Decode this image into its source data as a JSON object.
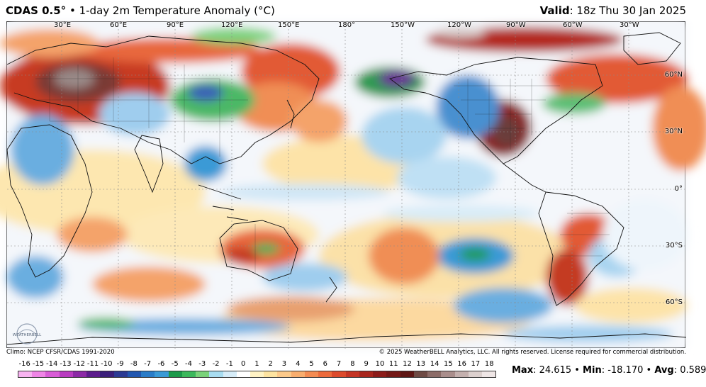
{
  "header": {
    "model": "CDAS 0.5",
    "degree_symbol": "°",
    "separator": "•",
    "field": "1-day 2m Temperature Anomaly (°C)",
    "valid_label": "Valid",
    "valid_value": ": 18z Thu 30 Jan 2025"
  },
  "map": {
    "longitude_labels": [
      "30°E",
      "60°E",
      "90°E",
      "120°E",
      "150°E",
      "180°",
      "150°W",
      "120°W",
      "90°W",
      "60°W",
      "30°W"
    ],
    "latitude_labels": [
      "60°N",
      "30°N",
      "0°",
      "30°S",
      "60°S"
    ],
    "logo_text": "WEATHERBELL"
  },
  "footer": {
    "climo": "Climo: NCEP CFSR/CDAS 1991-2020",
    "copyright": "© 2025 WeatherBELL Analytics, LLC. All rights reserved. License required for commercial distribution."
  },
  "colorbar": {
    "ticks": [
      "-16",
      "-15",
      "-14",
      "-13",
      "-12",
      "-11",
      "-10",
      "-9",
      "-8",
      "-7",
      "-6",
      "-5",
      "-4",
      "-3",
      "-2",
      "-1",
      "0",
      "1",
      "2",
      "3",
      "4",
      "5",
      "6",
      "7",
      "8",
      "9",
      "10",
      "11",
      "12",
      "13",
      "14",
      "15",
      "16",
      "17",
      "18"
    ],
    "colors": [
      "#f7b3f0",
      "#ef85e6",
      "#d85cd6",
      "#b83cc0",
      "#8c2aa6",
      "#5c1c8c",
      "#3a1f7a",
      "#2b3a93",
      "#2257b0",
      "#2a7cc8",
      "#3a9ad6",
      "#1c9a4a",
      "#3cb85c",
      "#7ad27a",
      "#a8dcf0",
      "#d6ecf8",
      "#ffffff",
      "#fff2c4",
      "#fde3a0",
      "#fcc98a",
      "#f8ad6e",
      "#f38b52",
      "#ec6a3c",
      "#dc4a2c",
      "#c43424",
      "#a8261e",
      "#8c1c1a",
      "#741816",
      "#5e1614",
      "#6e4a44",
      "#8c6c68",
      "#aa8e8c",
      "#c4b0ae",
      "#dcd0ce",
      "#efe6e6"
    ]
  },
  "stats": {
    "max_label": "Max",
    "max_value": ": 24.615 • ",
    "min_label": "Min",
    "min_value": ": -18.170 • ",
    "avg_label": "Avg",
    "avg_value": ": 0.589"
  }
}
